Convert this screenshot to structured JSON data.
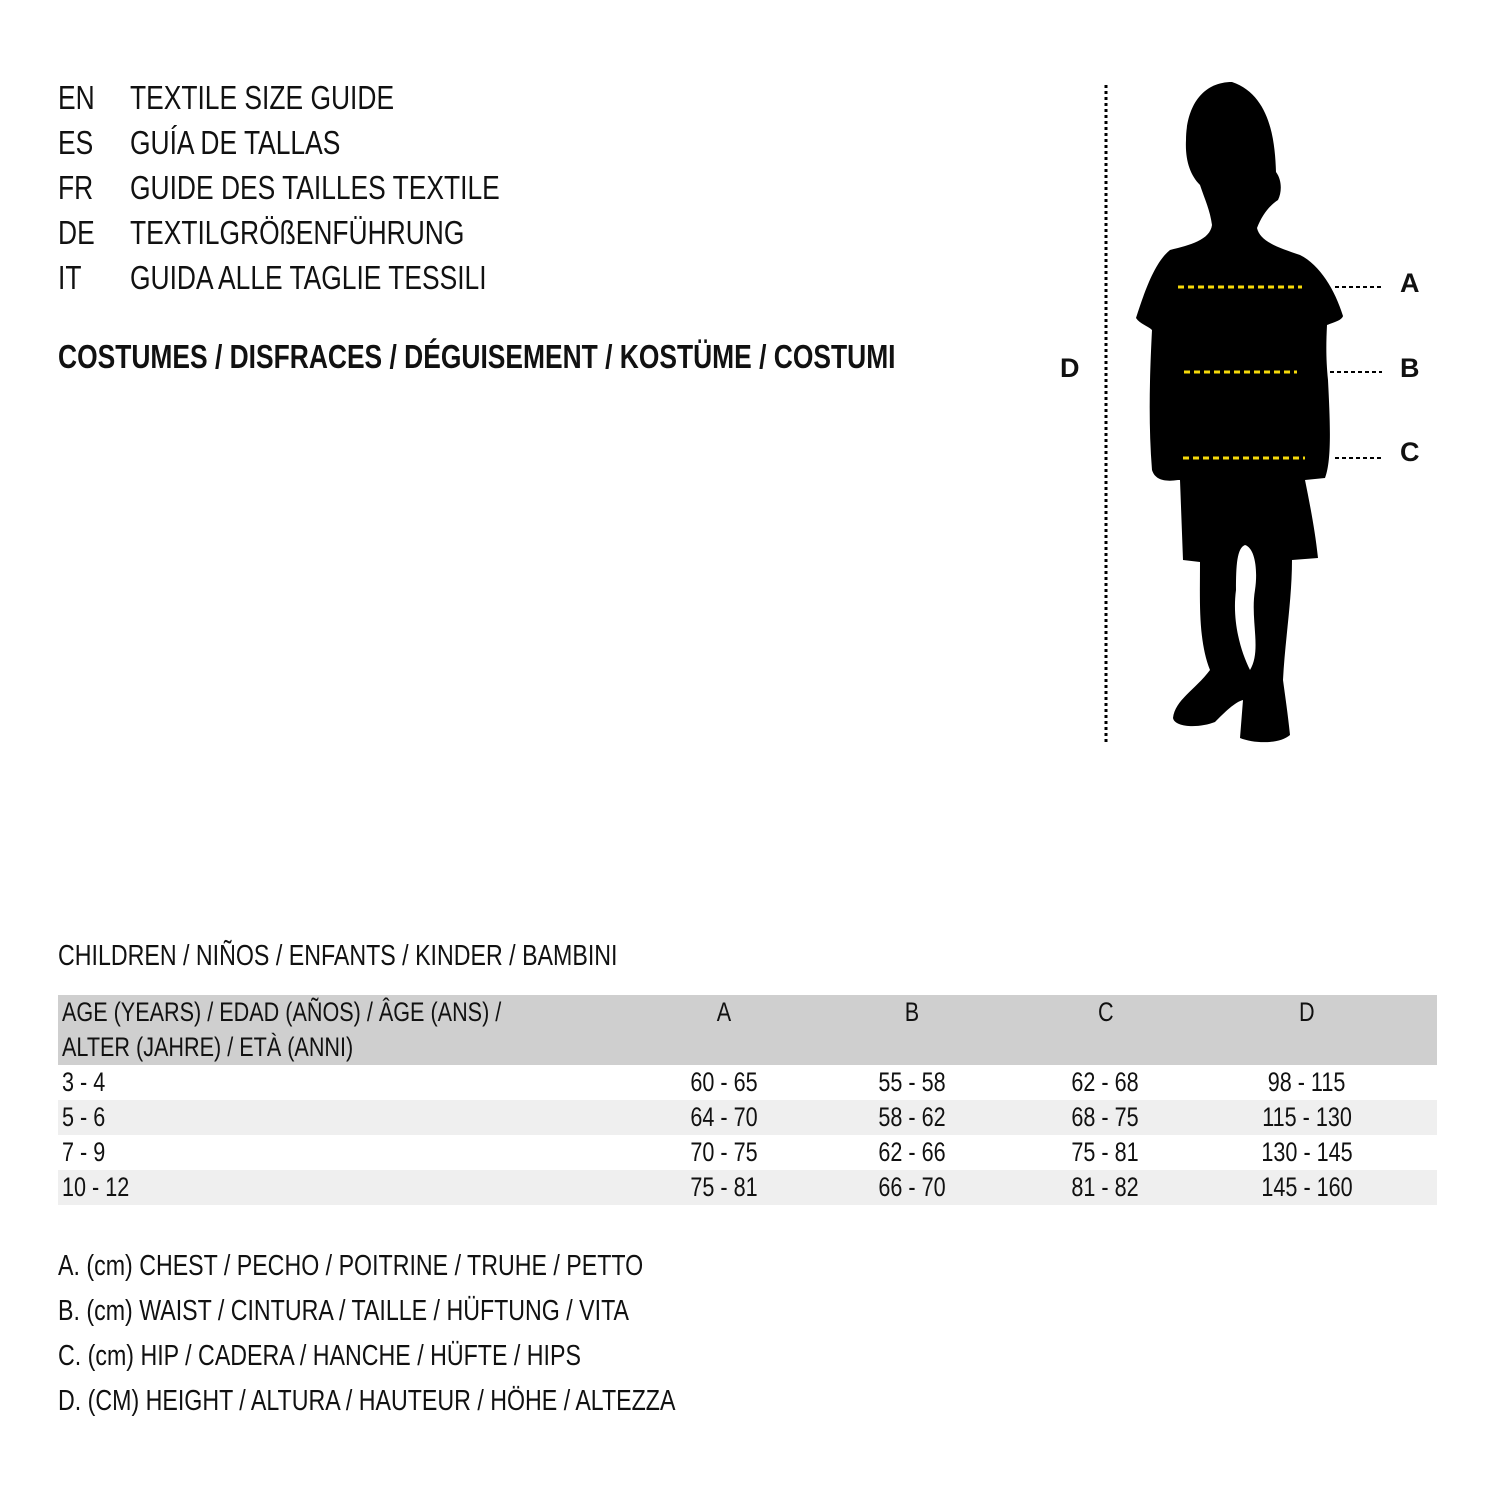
{
  "titles": [
    {
      "code": "EN",
      "text": "TEXTILE SIZE GUIDE"
    },
    {
      "code": "ES",
      "text": "GUÍA DE TALLAS"
    },
    {
      "code": "FR",
      "text": "GUIDE DES TAILLES TEXTILE"
    },
    {
      "code": "DE",
      "text": "TEXTILGRÖßENFÜHRUNG"
    },
    {
      "code": "IT",
      "text": "GUIDA ALLE TAGLIE TESSILI"
    }
  ],
  "category": "COSTUMES / DISFRACES / DÉGUISEMENT / KOSTÜME / COSTUMI",
  "figure": {
    "labels": {
      "a": "A",
      "b": "B",
      "c": "C",
      "d": "D"
    },
    "silhouette_color": "#000000",
    "measure_line_color": "#f5d90a"
  },
  "table": {
    "caption": "CHILDREN / NIÑOS / ENFANTS / KINDER / BAMBINI",
    "header": {
      "age_line1": "AGE (YEARS) / EDAD (AÑOS) / ÂGE (ANS) /",
      "age_line2": "ALTER (JAHRE) / ETÀ (ANNI)",
      "cols": [
        "A",
        "B",
        "C",
        "D"
      ]
    },
    "rows": [
      [
        "3 - 4",
        "60 - 65",
        "55 - 58",
        "62 - 68",
        "98 - 115"
      ],
      [
        "5 - 6",
        "64 - 70",
        "58 - 62",
        "68 - 75",
        "115 - 130"
      ],
      [
        "7 - 9",
        "70 - 75",
        "62 - 66",
        "75 - 81",
        "130 - 145"
      ],
      [
        "10 - 12",
        "75 - 81",
        "66 - 70",
        "81 - 82",
        "145 - 160"
      ]
    ],
    "header_bg": "#cfcfcf",
    "stripe_bg": "#efefef"
  },
  "legend": [
    "A. (cm) CHEST / PECHO / POITRINE / TRUHE / PETTO",
    "B. (cm) WAIST / CINTURA / TAILLE / HÜFTUNG / VITA",
    "C. (cm) HIP / CADERA / HANCHE / HÜFTE / HIPS",
    "D. (CM) HEIGHT / ALTURA / HAUTEUR / HÖHE / ALTEZZA"
  ]
}
